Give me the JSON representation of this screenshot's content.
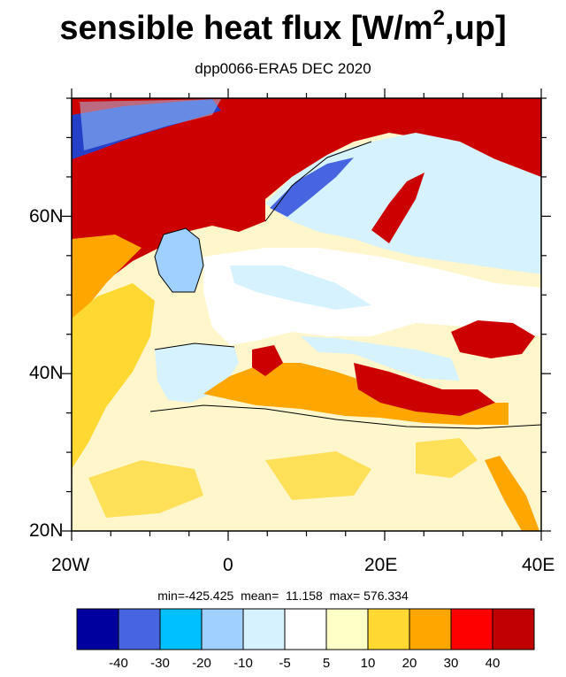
{
  "title": {
    "main": "sensible heat flux [W/m",
    "sup": "2",
    "tail": ",up]"
  },
  "subtitle": "dpp0066-ERA5  DEC 2020",
  "map": {
    "lat_range": [
      20,
      75
    ],
    "lon_range": [
      -20,
      40
    ],
    "land_color": "#fff6cc",
    "sea_positive_color": "#cc0000",
    "y_labels": [
      "60N",
      "40N",
      "20N"
    ],
    "x_labels": [
      "20W",
      "0",
      "20E",
      "40E"
    ]
  },
  "stats": {
    "min": "min=-425.425",
    "mean": "mean=  11.158",
    "max": "max= 576.334"
  },
  "colorbar": {
    "colors": [
      "#00009e",
      "#4765e0",
      "#00c0ff",
      "#a0d0ff",
      "#d6f2ff",
      "#ffffff",
      "#ffffc8",
      "#ffd832",
      "#ffa600",
      "#ff0000",
      "#c00000"
    ],
    "labels": [
      "-40",
      "-30",
      "-20",
      "-10",
      "-5",
      "5",
      "10",
      "20",
      "30",
      "40"
    ]
  }
}
